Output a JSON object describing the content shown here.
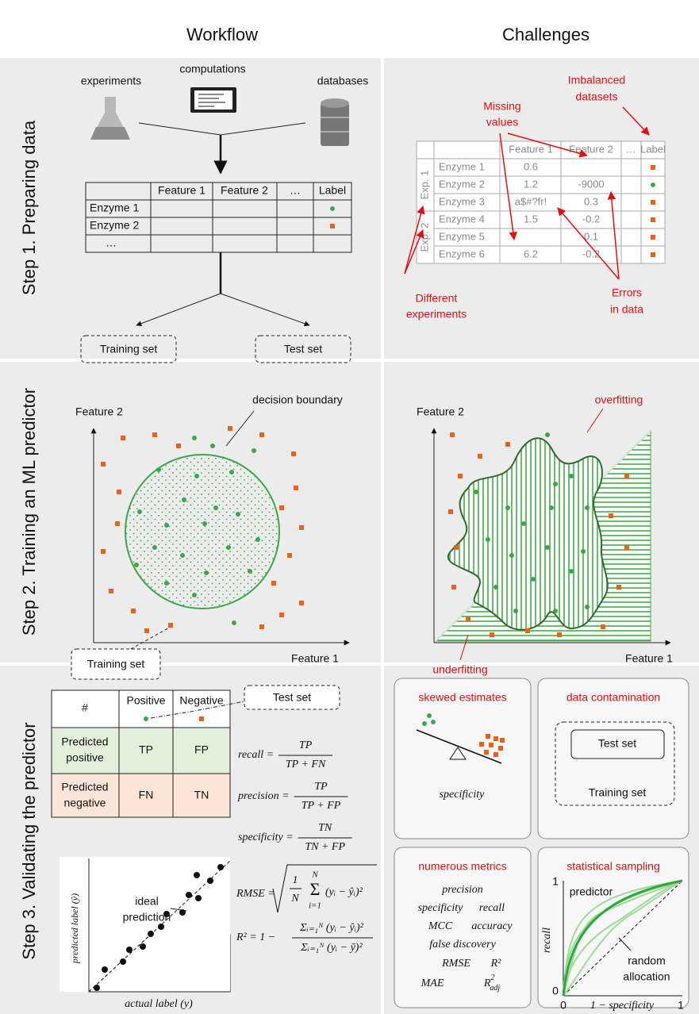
{
  "headers": {
    "workflow": "Workflow",
    "challenges": "Challenges"
  },
  "steps": [
    "Step 1. Preparing data",
    "Step 2. Training an ML predictor",
    "Step 3. Validating the predictor"
  ],
  "step1": {
    "sources": [
      "experiments",
      "computations",
      "databases"
    ],
    "table": {
      "columns": [
        "Feature 1",
        "Feature 2",
        "…",
        "Label"
      ],
      "rows": [
        "Enzyme 1",
        "Enzyme 2",
        "…"
      ]
    },
    "sets": [
      "Training set",
      "Test set"
    ],
    "challenges": {
      "table": {
        "columns": [
          "Feature 1",
          "Feature 2",
          "…",
          "Label"
        ],
        "groups": [
          "Exp. 1",
          "Exp. 2"
        ],
        "rows": [
          {
            "name": "Enzyme 1",
            "feature_1": 0.6
          },
          {
            "name": "Enzyme 2",
            "feature_1": 1.2,
            "feature_2": -9000
          },
          {
            "name": "Enzyme 3",
            "feature_1": "a$#?fr!",
            "feature_2": 0.3
          },
          {
            "name": "Enzyme 4",
            "feature_1": 1.5,
            "feature_2": -0.2
          },
          {
            "name": "Enzyme 5",
            "feature_2": 0.1
          },
          {
            "name": "Enzyme 6",
            "feature_1": 6.2,
            "feature_2": -0.2
          }
        ]
      },
      "annotations": {
        "missing": [
          "Missing",
          "values"
        ],
        "imbalanced": [
          "Imbalanced",
          "datasets"
        ],
        "different": [
          "Different",
          "experiments"
        ],
        "errors": [
          "Errors",
          "in data"
        ]
      }
    }
  },
  "step2": {
    "workflow": {
      "y_axis": "Feature 2",
      "x_axis": "Feature 1",
      "boundary": "decision boundary",
      "set": "Training set"
    },
    "challenges": {
      "y_axis": "Feature 2",
      "x_axis": "Feature 1",
      "overfitting": "overfitting",
      "underfitting": "underfitting"
    }
  },
  "step3": {
    "workflow": {
      "confusion": {
        "corner": "#",
        "columns": [
          "Positive",
          "Negative"
        ],
        "rows": [
          {
            "label": [
              "Predicted",
              "positive"
            ],
            "cells": [
              "TP",
              "FP"
            ]
          },
          {
            "label": [
              "Predicted",
              "negative"
            ],
            "cells": [
              "FN",
              "TN"
            ]
          }
        ]
      },
      "set": "Test set",
      "formulas": [
        {
          "lhs": "recall =",
          "numerator": "TP",
          "denominator": "TP + FN"
        },
        {
          "lhs": "precision =",
          "numerator": "TP",
          "denominator": "TP + FP"
        },
        {
          "lhs": "specificity =",
          "numerator": "TN",
          "denominator": "TN + FP"
        }
      ],
      "rmse": {
        "lhs": "RMSE =",
        "fraction": [
          "1",
          "N"
        ],
        "sum": "Σ",
        "upper": "N",
        "lower": "i=1",
        "term": "(yᵢ − ŷᵢ)²"
      },
      "r2": {
        "lhs": "R² = 1 −",
        "numerator": "Σᵢ₌₁ᴺ (yᵢ − ŷᵢ)²",
        "denominator": "Σᵢ₌₁ᴺ (yᵢ − ȳ)²"
      },
      "plot": {
        "annotation": [
          "ideal",
          "prediction"
        ],
        "y_axis": "predicted label (ŷ)",
        "x_axis": "actual label (y)"
      }
    },
    "challenges": {
      "skewed": {
        "title": "skewed estimates",
        "caption": "specificity"
      },
      "contamination": {
        "title": "data contamination",
        "inner": "Test set",
        "outer": "Training set"
      },
      "metrics": {
        "title": "numerous metrics",
        "lines": [
          [
            "precision"
          ],
          [
            "specificity",
            "recall"
          ],
          [
            "MCC",
            "accuracy"
          ],
          [
            "false discovery"
          ]
        ],
        "regression": [
          "RMSE",
          "R²",
          "MAE"
        ],
        "adjusted": {
          "base": "R",
          "sup": "2",
          "sub": "adj"
        }
      },
      "sampling": {
        "title": "statistical sampling",
        "y_axis": "recall",
        "x_axis": "1 − specificity",
        "y_ticks": [
          "1",
          "0"
        ],
        "x_ticks": [
          "0",
          "1"
        ],
        "predictor": "predictor",
        "random": [
          "random",
          "allocation"
        ]
      }
    }
  }
}
